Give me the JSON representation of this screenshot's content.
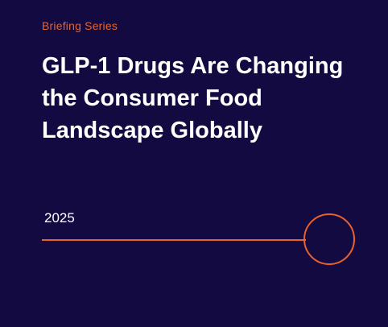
{
  "cover": {
    "series_label": "Briefing Series",
    "title_lines": [
      "GLP-1 Drugs Are Changing",
      "the Consumer Food",
      "Landscape Globally"
    ],
    "year": "2025"
  },
  "colors": {
    "background": "#140a42",
    "accent": "#e8622c",
    "text": "#ffffff"
  }
}
